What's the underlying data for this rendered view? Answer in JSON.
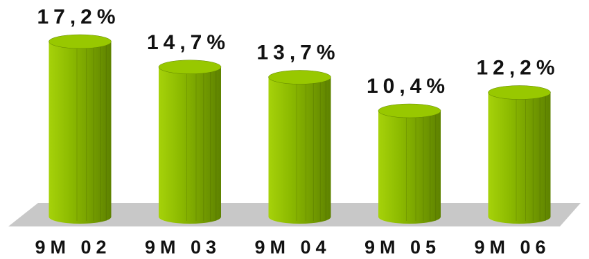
{
  "chart_data": {
    "type": "bar",
    "style": "3d-cylinder",
    "categories": [
      "9M02",
      "9M03",
      "9M04",
      "9M05",
      "9M06"
    ],
    "values": [
      17.2,
      14.7,
      13.7,
      10.4,
      12.2
    ],
    "value_labels": [
      "17,2%",
      "14,7%",
      "13,7%",
      "10,4%",
      "12,2%"
    ],
    "category_labels": [
      "9M 02",
      "9M 03",
      "9M 04",
      "9M 05",
      "9M 06"
    ],
    "ylim": [
      0,
      17.2
    ],
    "grid": false,
    "legend": "none",
    "colors": {
      "bar_light": "#a6d20a",
      "bar_mid": "#8cba00",
      "bar_dark": "#5e8200",
      "bar_top": "#98c800",
      "floor": "#c8c8c8"
    }
  }
}
